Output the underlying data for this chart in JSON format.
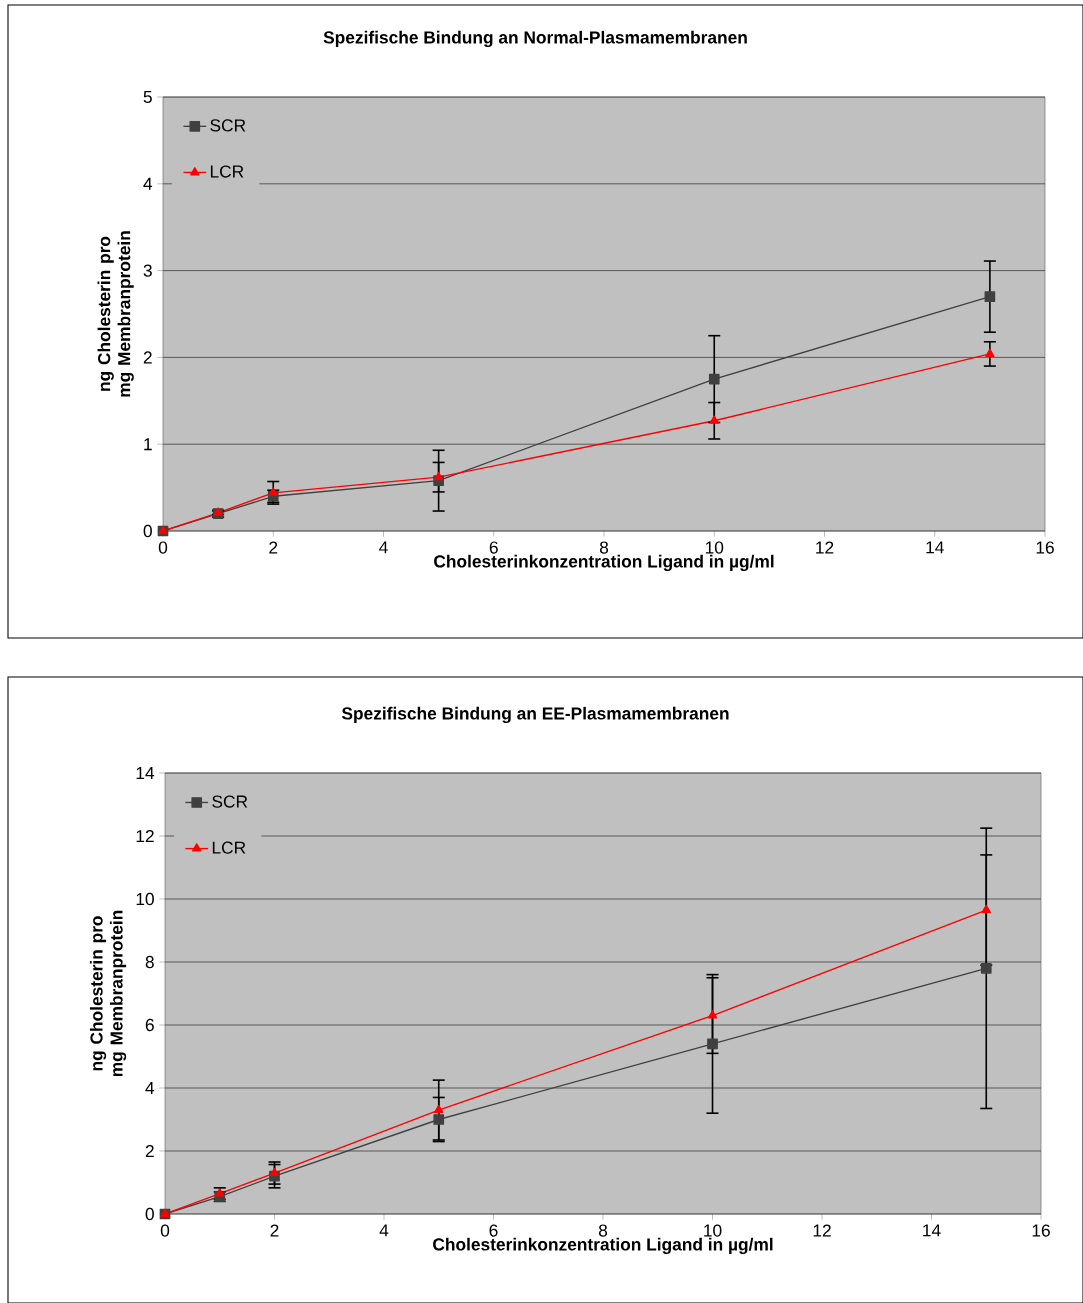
{
  "chart_data": [
    {
      "type": "line",
      "title": "Spezifische Bindung an Normal-Plasmamembranen",
      "xlabel": "Cholesterinkonzentration Ligand in µg/ml",
      "ylabel": "ng Cholesterin pro mg Membranprotein",
      "x": [
        0,
        1,
        2,
        5,
        10,
        15
      ],
      "xlim": [
        0,
        16
      ],
      "xticks": [
        0,
        2,
        4,
        6,
        8,
        10,
        12,
        14,
        16
      ],
      "ylim": [
        0,
        5
      ],
      "yticks": [
        0,
        1,
        2,
        3,
        4,
        5
      ],
      "grid": "y",
      "legend": "top left",
      "series": [
        {
          "name": "SCR",
          "color": "#404040",
          "marker": "square",
          "values": [
            0,
            0.2,
            0.4,
            0.58,
            1.75,
            2.7
          ],
          "errors": [
            null,
            0.04,
            0.07,
            0.35,
            0.5,
            0.41
          ]
        },
        {
          "name": "LCR",
          "color": "#ff0000",
          "marker": "triangle",
          "values": [
            0,
            0.21,
            0.44,
            0.62,
            1.27,
            2.04
          ],
          "errors": [
            null,
            0.02,
            0.13,
            0.17,
            0.21,
            0.14
          ]
        }
      ]
    },
    {
      "type": "line",
      "title": "Spezifische Bindung an EE-Plasmamembranen",
      "xlabel": "Cholesterinkonzentration Ligand in µg/ml",
      "ylabel": "ng Cholesterin pro mg Membranprotein",
      "x": [
        0,
        1,
        2,
        5,
        10,
        15
      ],
      "xlim": [
        0,
        16
      ],
      "xticks": [
        0,
        2,
        4,
        6,
        8,
        10,
        12,
        14,
        16
      ],
      "ylim": [
        0,
        14
      ],
      "yticks": [
        0,
        2,
        4,
        6,
        8,
        10,
        12,
        14
      ],
      "grid": "y",
      "legend": "top left",
      "series": [
        {
          "name": "SCR",
          "color": "#404040",
          "marker": "square",
          "values": [
            0,
            0.55,
            1.2,
            3.0,
            5.4,
            7.8
          ],
          "errors": [
            null,
            0.15,
            0.37,
            0.7,
            2.2,
            4.45
          ]
        },
        {
          "name": "LCR",
          "color": "#ff0000",
          "marker": "triangle",
          "values": [
            0,
            0.65,
            1.3,
            3.3,
            6.3,
            9.65
          ],
          "errors": [
            null,
            0.18,
            0.35,
            0.95,
            1.2,
            1.75
          ]
        }
      ]
    }
  ]
}
